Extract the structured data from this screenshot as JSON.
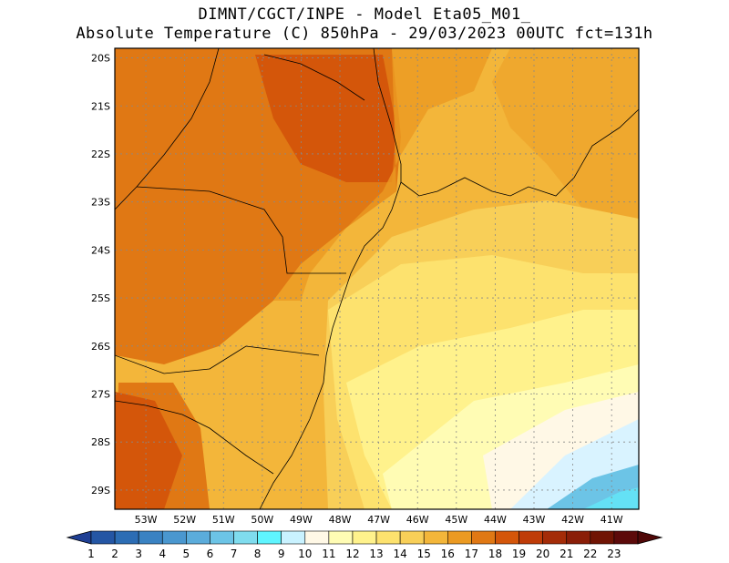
{
  "title": {
    "line1": "DIMNT/CGCT/INPE -  Model Eta05_M01_",
    "line2": "Absolute Temperature (C) 850hPa -  29/03/2023 00UTC fct=131h"
  },
  "map_data": {
    "lat_labels": [
      "20S",
      "21S",
      "22S",
      "23S",
      "24S",
      "25S",
      "26S",
      "27S",
      "28S",
      "29S"
    ],
    "lon_labels": [
      "53W",
      "52W",
      "51W",
      "50W",
      "49W",
      "48W",
      "47W",
      "46W",
      "45W",
      "44W",
      "43W",
      "42W",
      "41W"
    ],
    "lat_range": [
      -29.4,
      -19.8
    ],
    "lon_range": [
      -53.8,
      -40.3
    ]
  },
  "colorbar": {
    "labels": [
      "1",
      "2",
      "3",
      "4",
      "5",
      "6",
      "7",
      "8",
      "9",
      "10",
      "11",
      "12",
      "13",
      "14",
      "15",
      "16",
      "17",
      "18",
      "19",
      "20",
      "21",
      "22",
      "23"
    ],
    "colors": [
      "#1f3f94",
      "#2456a4",
      "#2c6db4",
      "#3a82c2",
      "#4a97cf",
      "#5bacdb",
      "#6cc4e6",
      "#7fdcee",
      "#5ff5ff",
      "#c9f2ff",
      "#fff8e6",
      "#fffcb4",
      "#fff28c",
      "#fde26e",
      "#f8cf58",
      "#f3b63a",
      "#eb9a22",
      "#e07814",
      "#d4560a",
      "#bf3c08",
      "#a42c08",
      "#8a1e08",
      "#701404",
      "#5c0a0a",
      "#500808"
    ]
  },
  "colors": {
    "sea_cool": "#d9f3ff",
    "warm_max": "#c4420a"
  }
}
